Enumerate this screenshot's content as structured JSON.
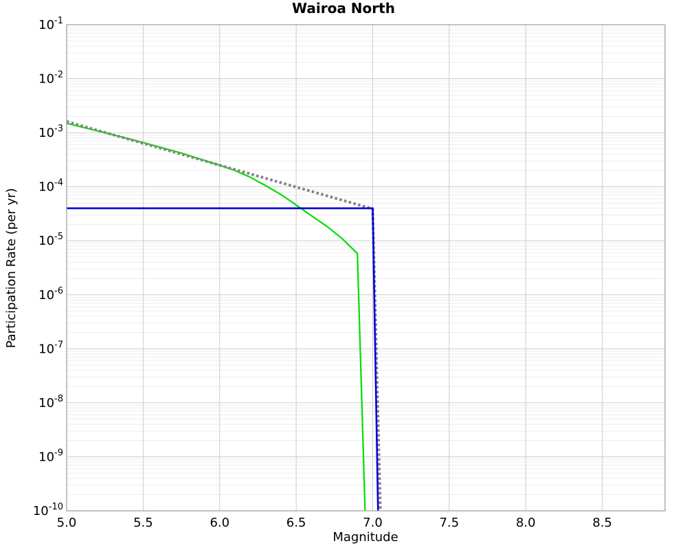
{
  "chart_data": {
    "type": "line",
    "title": "Wairoa North",
    "xlabel": "Magnitude",
    "ylabel": "Participation Rate (per yr)",
    "xlim": [
      5.0,
      8.91
    ],
    "ylim": [
      1e-10,
      0.1
    ],
    "x_ticks": [
      "5.0",
      "5.5",
      "6.0",
      "6.5",
      "7.0",
      "7.5",
      "8.0",
      "8.5"
    ],
    "y_tick_exponents": [
      -1,
      -2,
      -3,
      -4,
      -5,
      -6,
      -7,
      -8,
      -9,
      -10
    ],
    "grid": "major-and-log-minor",
    "legend_position": "none",
    "colors": {
      "background": "#ffffff",
      "major_grid": "#cccccc",
      "minor_grid": "#ebebeb",
      "plot_border": "#9a9a9a",
      "text": "#000000"
    },
    "series": [
      {
        "name": "green-solid-curve",
        "color": "#00dd00",
        "style": "solid",
        "stroke_width": 2.2,
        "points": [
          [
            5.0,
            0.0015
          ],
          [
            5.25,
            0.001
          ],
          [
            5.5,
            0.00066
          ],
          [
            5.75,
            0.00042
          ],
          [
            6.0,
            0.00025
          ],
          [
            6.1,
            0.0002
          ],
          [
            6.2,
            0.00015
          ],
          [
            6.3,
            0.000105
          ],
          [
            6.4,
            7.2e-05
          ],
          [
            6.5,
            4.6e-05
          ],
          [
            6.6,
            2.9e-05
          ],
          [
            6.7,
            1.85e-05
          ],
          [
            6.8,
            1.1e-05
          ],
          [
            6.9,
            5.8e-06
          ],
          [
            6.95,
            1e-10
          ]
        ]
      },
      {
        "name": "gray-dotted-line",
        "color": "#858585",
        "style": "dotted",
        "stroke_width": 4,
        "points": [
          [
            5.0,
            0.00162
          ],
          [
            7.0,
            3.9e-05
          ],
          [
            7.05,
            1e-10
          ]
        ]
      },
      {
        "name": "blue-solid-line",
        "color": "#0000dd",
        "style": "solid",
        "stroke_width": 2.6,
        "points": [
          [
            5.0,
            4e-05
          ],
          [
            7.0,
            4e-05
          ],
          [
            7.035,
            1e-10
          ]
        ]
      }
    ]
  }
}
